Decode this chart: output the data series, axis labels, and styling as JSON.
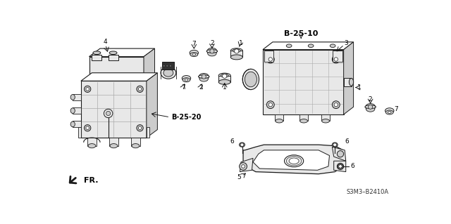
{
  "bg_color": "#ffffff",
  "diagram_code": "S3M3–B2410A",
  "fr_label": "FR.",
  "b2510": "B-25-10",
  "b2520": "B-25-20",
  "fig_width": 6.4,
  "fig_height": 3.19,
  "dark": "#1a1a1a",
  "mid": "#555555",
  "light": "#aaaaaa",
  "fill_light": "#e8e8e8",
  "fill_mid": "#cccccc"
}
